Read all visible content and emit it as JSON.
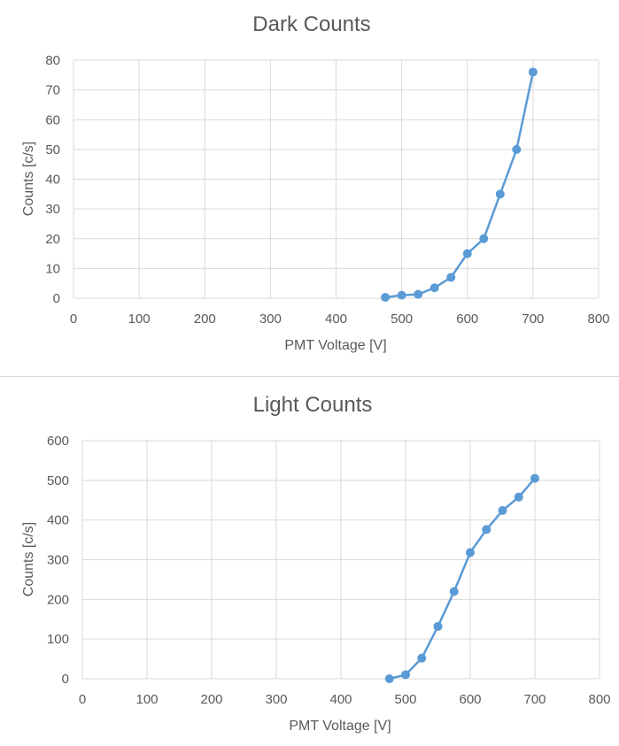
{
  "chart_data": [
    {
      "type": "line",
      "title": "Dark Counts",
      "xlabel": "PMT Voltage [V]",
      "ylabel": "Counts [c/s]",
      "xlim": [
        0,
        800
      ],
      "ylim": [
        0,
        80
      ],
      "xticks": [
        0,
        100,
        200,
        300,
        400,
        500,
        600,
        700,
        800
      ],
      "yticks": [
        0,
        10,
        20,
        30,
        40,
        50,
        60,
        70,
        80
      ],
      "grid": true,
      "color": "#5B9BD5",
      "x": [
        475,
        500,
        525,
        550,
        575,
        600,
        625,
        650,
        675,
        700
      ],
      "y": [
        0.3,
        1,
        1.3,
        3.5,
        7,
        15,
        20,
        35,
        50,
        76
      ]
    },
    {
      "type": "line",
      "title": "Light Counts",
      "xlabel": "PMT Voltage [V]",
      "ylabel": "Counts [c/s]",
      "xlim": [
        0,
        800
      ],
      "ylim": [
        0,
        600
      ],
      "xticks": [
        0,
        100,
        200,
        300,
        400,
        500,
        600,
        700,
        800
      ],
      "yticks": [
        0,
        100,
        200,
        300,
        400,
        500,
        600
      ],
      "grid": true,
      "color": "#5B9BD5",
      "x": [
        475,
        500,
        525,
        550,
        575,
        600,
        625,
        650,
        675,
        700
      ],
      "y": [
        0,
        10,
        52,
        132,
        220,
        318,
        376,
        424,
        458,
        505
      ]
    }
  ]
}
